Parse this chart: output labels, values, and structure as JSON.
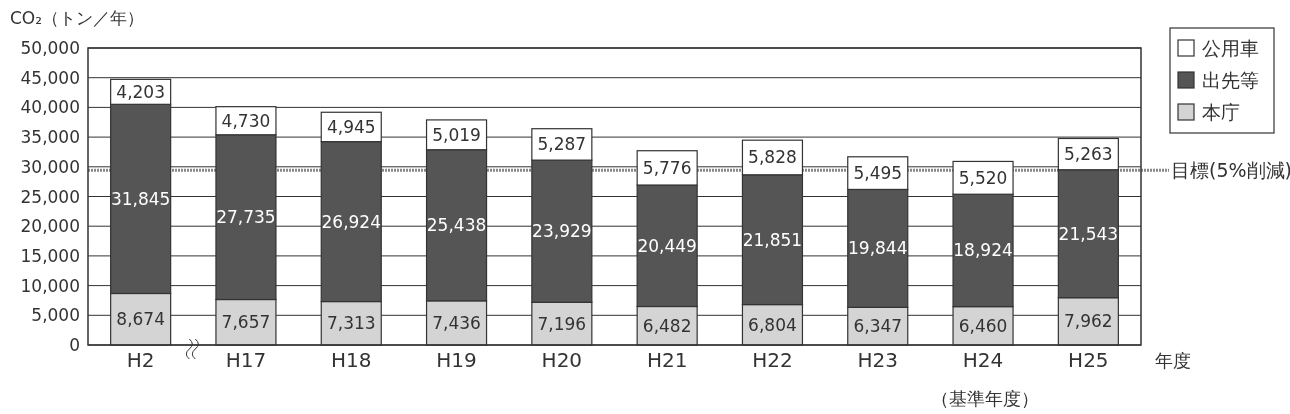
{
  "chart_data": {
    "type": "bar",
    "stacked": true,
    "ylabel": "CO₂（トン／年）",
    "xlabel": "年度",
    "categories": [
      "H2",
      "H17",
      "H18",
      "H19",
      "H20",
      "H21",
      "H22",
      "H23",
      "H24",
      "H25"
    ],
    "series": [
      {
        "name": "本庁",
        "color": "#d4d4d4",
        "values": [
          8674,
          7657,
          7313,
          7436,
          7196,
          6482,
          6804,
          6347,
          6460,
          7962
        ],
        "value_labels": [
          "8,674",
          "7,657",
          "7,313",
          "7,436",
          "7,196",
          "6,482",
          "6,804",
          "6,347",
          "6,460",
          "7,962"
        ]
      },
      {
        "name": "出先等",
        "color": "#555555",
        "values": [
          31845,
          27735,
          26924,
          25438,
          23929,
          20449,
          21851,
          19844,
          18924,
          21543
        ],
        "value_labels": [
          "31,845",
          "27,735",
          "26,924",
          "25,438",
          "23,929",
          "20,449",
          "21,851",
          "19,844",
          "18,924",
          "21,543"
        ]
      },
      {
        "name": "公用車",
        "color": "#ffffff",
        "values": [
          4203,
          4730,
          4945,
          5019,
          5287,
          5776,
          5828,
          5495,
          5520,
          5263
        ],
        "value_labels": [
          "4,203",
          "4,730",
          "4,945",
          "5,019",
          "5,287",
          "5,776",
          "5,828",
          "5,495",
          "5,520",
          "5,263"
        ]
      }
    ],
    "ylim": [
      0,
      50000
    ],
    "yticks": [
      {
        "value": 0,
        "label": "0"
      },
      {
        "value": 5000,
        "label": "5,000"
      },
      {
        "value": 10000,
        "label": "10,000"
      },
      {
        "value": 15000,
        "label": "15,000"
      },
      {
        "value": 20000,
        "label": "20,000"
      },
      {
        "value": 25000,
        "label": "25,000"
      },
      {
        "value": 30000,
        "label": "30,000"
      },
      {
        "value": 35000,
        "label": "35,000"
      },
      {
        "value": 40000,
        "label": "40,000"
      },
      {
        "value": 45000,
        "label": "45,000"
      },
      {
        "value": 50000,
        "label": "50,000"
      }
    ],
    "grid": "y",
    "legend": "top right",
    "ref_lines": [
      {
        "axis": "y",
        "value": 29400,
        "label": "目標(5%削減)",
        "line_style": "dotted",
        "color": "#888888"
      }
    ],
    "annotations": [
      "（基準年度）"
    ]
  }
}
